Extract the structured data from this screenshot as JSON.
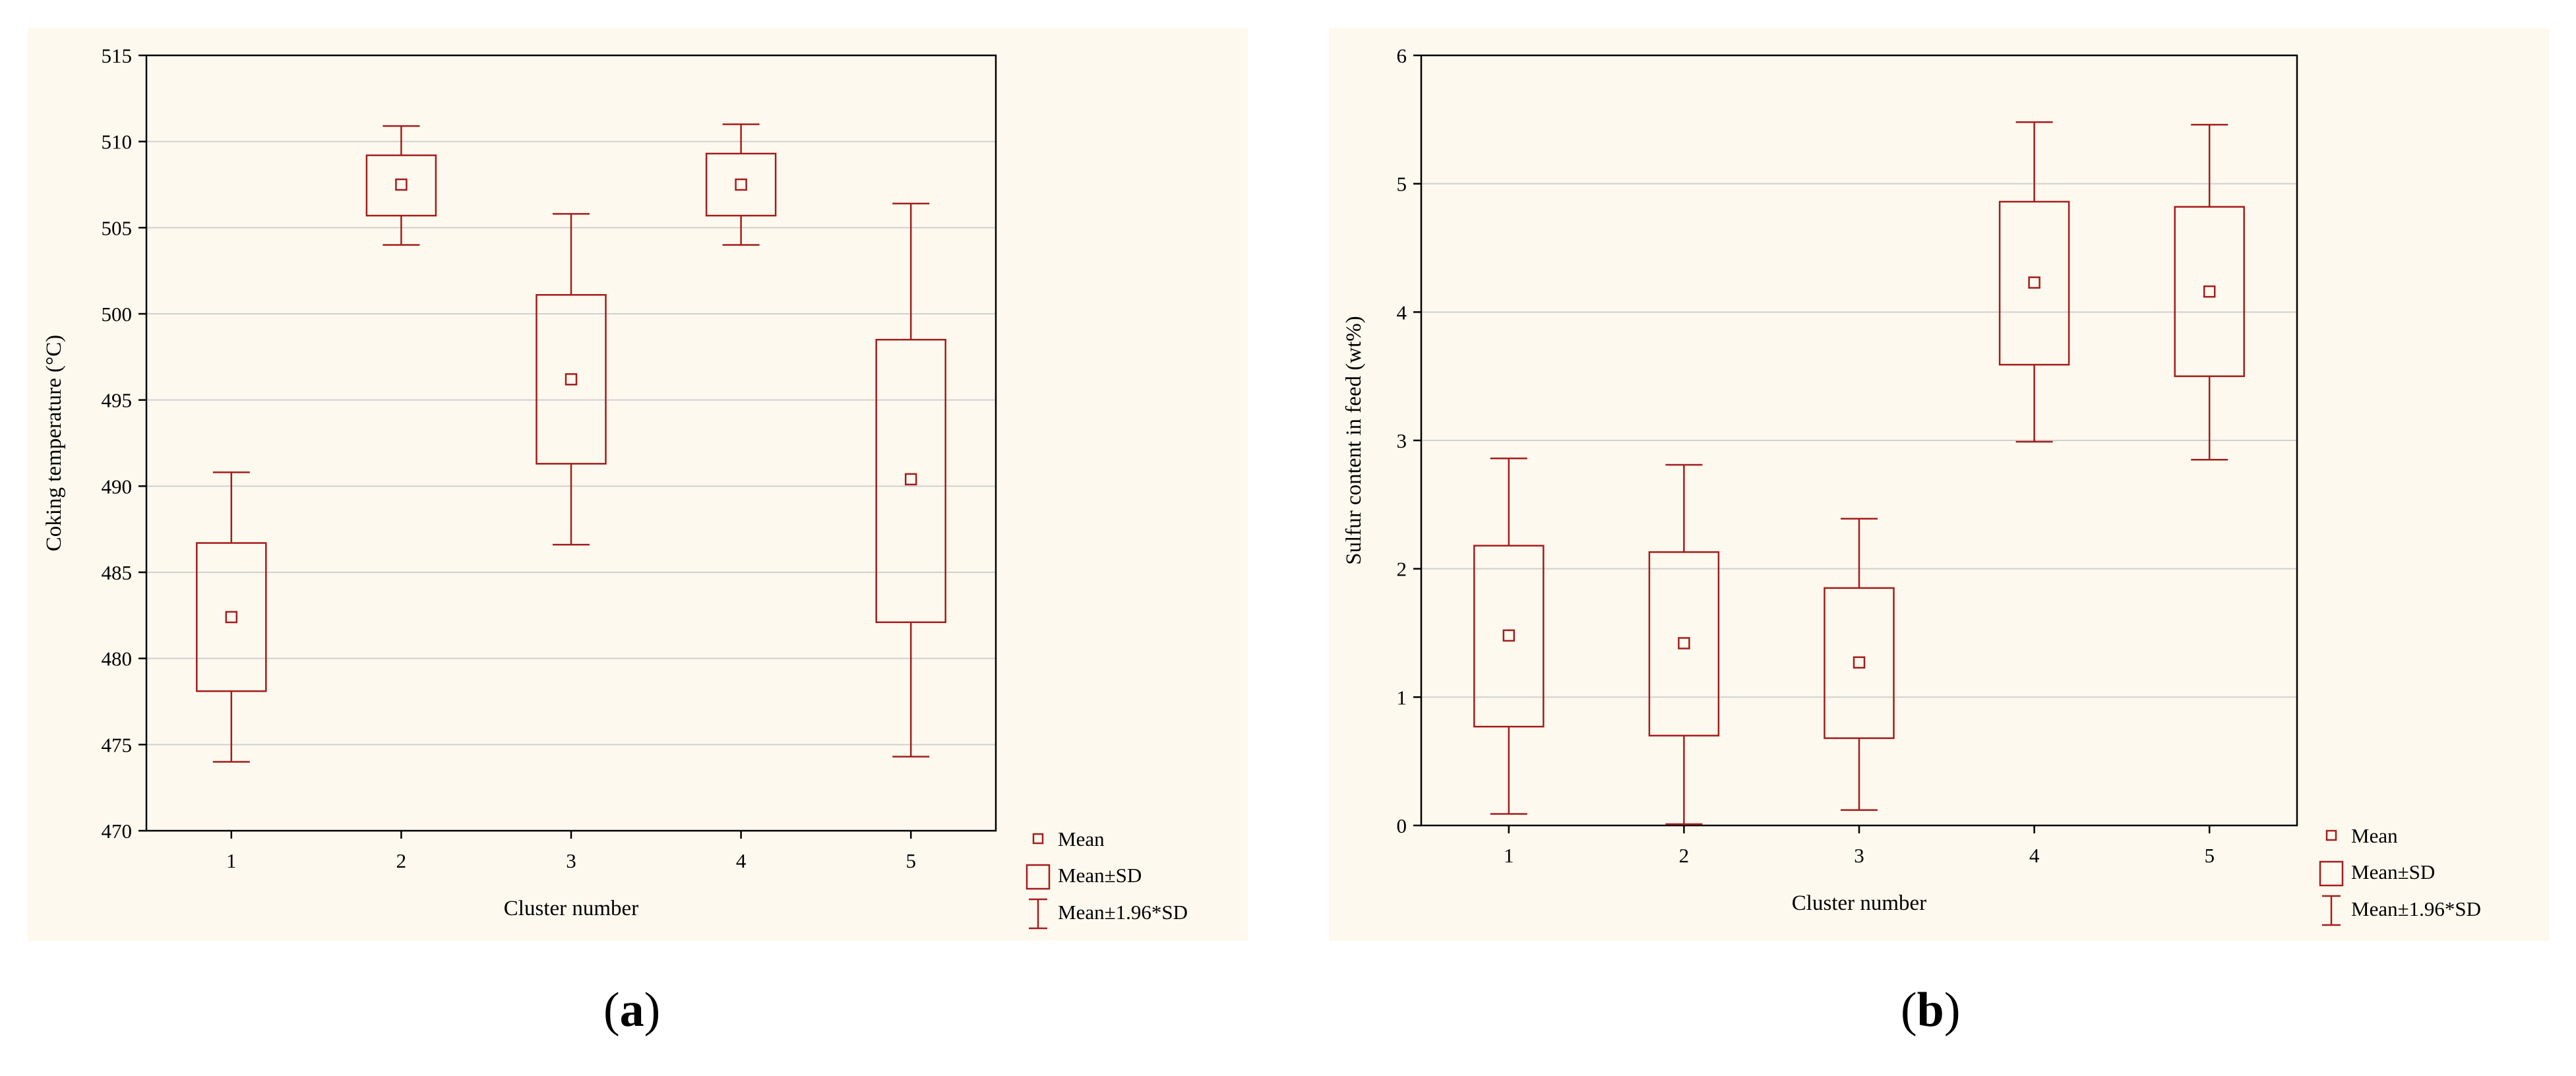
{
  "colors": {
    "mark": "#a51c1c",
    "grid": "#d0d0d0",
    "panel_bg": "#fdf9ee",
    "axis": "#000000"
  },
  "legend": {
    "mean": "Mean",
    "sd": "Mean±SD",
    "ci": "Mean±1.96*SD"
  },
  "captions": {
    "a_letter": "a",
    "b_letter": "b"
  },
  "chart_data": [
    {
      "type": "box",
      "xlabel": "Cluster number",
      "ylabel": "Coking temperature (°C)",
      "ylim": [
        470,
        515
      ],
      "yticks": [
        470,
        475,
        480,
        485,
        490,
        495,
        500,
        505,
        510,
        515
      ],
      "categories": [
        "1",
        "2",
        "3",
        "4",
        "5"
      ],
      "mean": [
        482.4,
        507.5,
        496.2,
        507.5,
        490.4
      ],
      "mean_minus_sd": [
        478.1,
        505.7,
        491.3,
        505.7,
        482.1
      ],
      "mean_plus_sd": [
        486.7,
        509.2,
        501.1,
        509.3,
        498.5
      ],
      "mean_minus_1_96sd": [
        474.0,
        504.0,
        486.6,
        504.0,
        474.3
      ],
      "mean_plus_1_96sd": [
        490.8,
        510.9,
        505.8,
        511.0,
        506.4
      ],
      "grid": true,
      "legend_position": "bottom-right outside"
    },
    {
      "type": "box",
      "xlabel": "Cluster number",
      "ylabel": "Sulfur content in feed (wt%)",
      "ylim": [
        0,
        6
      ],
      "yticks": [
        0,
        1,
        2,
        3,
        4,
        5,
        6
      ],
      "categories": [
        "1",
        "2",
        "3",
        "4",
        "5"
      ],
      "mean": [
        1.48,
        1.42,
        1.27,
        4.23,
        4.16
      ],
      "mean_minus_sd": [
        0.77,
        0.7,
        0.68,
        3.59,
        3.5
      ],
      "mean_plus_sd": [
        2.18,
        2.13,
        1.85,
        4.86,
        4.82
      ],
      "mean_minus_1_96sd": [
        0.09,
        0.01,
        0.12,
        2.99,
        2.85
      ],
      "mean_plus_1_96sd": [
        2.86,
        2.81,
        2.39,
        5.48,
        5.46
      ],
      "grid": true,
      "legend_position": "bottom-right outside"
    }
  ]
}
